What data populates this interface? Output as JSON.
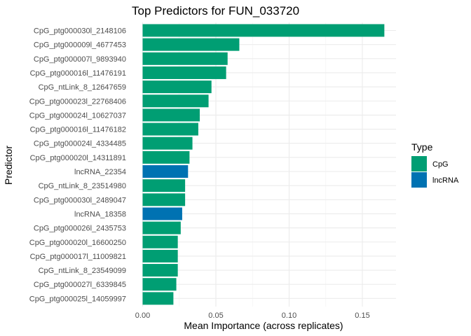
{
  "chart_data": {
    "type": "bar",
    "orientation": "horizontal",
    "title": "Top Predictors for FUN_033720",
    "xlabel": "Mean Importance (across replicates)",
    "ylabel": "Predictor",
    "xlim": [
      0,
      0.172
    ],
    "x_ticks": [
      0.0,
      0.05,
      0.1,
      0.15
    ],
    "x_tick_labels": [
      "0.00",
      "0.05",
      "0.10",
      "0.15"
    ],
    "grid": true,
    "legend": {
      "title": "Type",
      "placement": "right",
      "entries": [
        {
          "label": "CpG",
          "color": "#009E73"
        },
        {
          "label": "lncRNA",
          "color": "#0072B2"
        }
      ]
    },
    "bars": [
      {
        "label": "CpG_ptg000030l_2148106",
        "value": 0.165,
        "type": "CpG"
      },
      {
        "label": "CpG_ptg000009l_4677453",
        "value": 0.066,
        "type": "CpG"
      },
      {
        "label": "CpG_ptg000007l_9893940",
        "value": 0.058,
        "type": "CpG"
      },
      {
        "label": "CpG_ptg000016l_11476191",
        "value": 0.057,
        "type": "CpG"
      },
      {
        "label": "CpG_ntLink_8_12647659",
        "value": 0.047,
        "type": "CpG"
      },
      {
        "label": "CpG_ptg000023l_22768406",
        "value": 0.045,
        "type": "CpG"
      },
      {
        "label": "CpG_ptg000024l_10627037",
        "value": 0.039,
        "type": "CpG"
      },
      {
        "label": "CpG_ptg000016l_11476182",
        "value": 0.038,
        "type": "CpG"
      },
      {
        "label": "CpG_ptg000024l_4334485",
        "value": 0.034,
        "type": "CpG"
      },
      {
        "label": "CpG_ptg000020l_14311891",
        "value": 0.032,
        "type": "CpG"
      },
      {
        "label": "lncRNA_22354",
        "value": 0.031,
        "type": "lncRNA"
      },
      {
        "label": "CpG_ntLink_8_23514980",
        "value": 0.029,
        "type": "CpG"
      },
      {
        "label": "CpG_ptg000030l_2489047",
        "value": 0.029,
        "type": "CpG"
      },
      {
        "label": "lncRNA_18358",
        "value": 0.027,
        "type": "lncRNA"
      },
      {
        "label": "CpG_ptg000026l_2435753",
        "value": 0.026,
        "type": "CpG"
      },
      {
        "label": "CpG_ptg000020l_16600250",
        "value": 0.024,
        "type": "CpG"
      },
      {
        "label": "CpG_ptg000017l_11009821",
        "value": 0.024,
        "type": "CpG"
      },
      {
        "label": "CpG_ntLink_8_23549099",
        "value": 0.024,
        "type": "CpG"
      },
      {
        "label": "CpG_ptg000027l_6339845",
        "value": 0.023,
        "type": "CpG"
      },
      {
        "label": "CpG_ptg000025l_14059997",
        "value": 0.021,
        "type": "CpG"
      }
    ]
  }
}
